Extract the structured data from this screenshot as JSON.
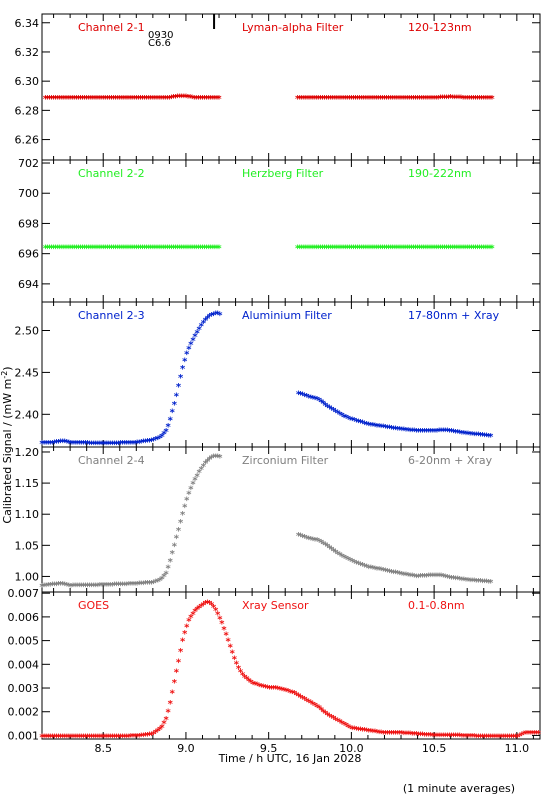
{
  "shared": {
    "x_ticks": [
      "8.5",
      "9.0",
      "9.5",
      "10.0",
      "10.5",
      "11.0"
    ],
    "xlabel": "Time / h UTC, 16 Jan 2028",
    "ylabel": "Calibrated Signal / (mW m",
    "ylabel_exp": "-2",
    "ylabel_end": ")",
    "footnote": "(1 minute averages)"
  },
  "chart_data": [
    {
      "type": "scatter",
      "channel": "Channel 2-1",
      "filter": "Lyman-alpha Filter",
      "band": "120-123nm",
      "color": "#dd0000",
      "ylim": [
        6.246,
        6.346
      ],
      "y_ticks": [
        "6.26",
        "6.28",
        "6.30",
        "6.32",
        "6.34"
      ],
      "xlim": [
        8.13,
        11.14
      ],
      "flare_label_time": "0930",
      "flare_label_class": "C6.6",
      "flare_marker_x": 9.17,
      "data_gap": [
        9.21,
        9.67
      ],
      "series_x": [
        8.15,
        8.3,
        8.5,
        8.7,
        8.9,
        8.95,
        9.0,
        9.05,
        9.2,
        9.67,
        9.9,
        10.2,
        10.5,
        10.6,
        10.7,
        10.85
      ],
      "series_y": [
        6.2885,
        6.2885,
        6.2885,
        6.2885,
        6.2885,
        6.2895,
        6.2895,
        6.2885,
        6.2885,
        6.2885,
        6.2885,
        6.2885,
        6.2885,
        6.289,
        6.2885,
        6.2885
      ]
    },
    {
      "type": "scatter",
      "channel": "Channel 2-2",
      "filter": "Herzberg Filter",
      "band": "190-222nm",
      "color": "#22ee22",
      "ylim": [
        692.8,
        702.2
      ],
      "y_ticks": [
        "694",
        "696",
        "698",
        "700",
        "702"
      ],
      "xlim": [
        8.13,
        11.14
      ],
      "data_gap": [
        9.21,
        9.67
      ],
      "series_x": [
        8.15,
        8.6,
        9.0,
        9.2,
        9.67,
        10.0,
        10.5,
        10.85
      ],
      "series_y": [
        696.4,
        696.4,
        696.4,
        696.4,
        696.4,
        696.4,
        696.4,
        696.4
      ]
    },
    {
      "type": "scatter",
      "channel": "Channel 2-3",
      "filter": "Aluminium Filter",
      "band": "17-80nm + Xray",
      "color": "#0022cc",
      "ylim": [
        2.361,
        2.534
      ],
      "y_ticks": [
        "2.40",
        "2.45",
        "2.50"
      ],
      "xlim": [
        8.13,
        11.14
      ],
      "data_gap": [
        9.21,
        9.67
      ],
      "series_x": [
        8.13,
        8.2,
        8.25,
        8.3,
        8.5,
        8.7,
        8.8,
        8.85,
        8.88,
        8.9,
        8.92,
        8.94,
        8.96,
        8.98,
        9.0,
        9.02,
        9.04,
        9.06,
        9.08,
        9.1,
        9.12,
        9.14,
        9.16,
        9.18,
        9.2,
        9.67,
        9.7,
        9.75,
        9.8,
        9.85,
        9.9,
        9.95,
        10.0,
        10.1,
        10.2,
        10.3,
        10.4,
        10.5,
        10.55,
        10.6,
        10.7,
        10.8,
        10.85
      ],
      "series_y": [
        2.366,
        2.366,
        2.368,
        2.366,
        2.365,
        2.366,
        2.369,
        2.373,
        2.38,
        2.39,
        2.405,
        2.42,
        2.438,
        2.455,
        2.47,
        2.48,
        2.488,
        2.495,
        2.502,
        2.508,
        2.513,
        2.517,
        2.519,
        2.52,
        2.52,
        2.425,
        2.424,
        2.42,
        2.418,
        2.41,
        2.404,
        2.398,
        2.394,
        2.388,
        2.385,
        2.382,
        2.38,
        2.38,
        2.381,
        2.38,
        2.377,
        2.375,
        2.374
      ]
    },
    {
      "type": "scatter",
      "channel": "Channel 2-4",
      "filter": "Zirconium Filter",
      "band": "6-20nm + Xray",
      "color": "#808080",
      "ylim": [
        0.975,
        1.208
      ],
      "y_ticks": [
        "1.00",
        "1.05",
        "1.10",
        "1.15",
        "1.20"
      ],
      "xlim": [
        8.13,
        11.14
      ],
      "data_gap": [
        9.21,
        9.67
      ],
      "series_x": [
        8.13,
        8.2,
        8.25,
        8.3,
        8.5,
        8.7,
        8.8,
        8.85,
        8.88,
        8.9,
        8.92,
        8.94,
        8.96,
        8.98,
        9.0,
        9.02,
        9.04,
        9.06,
        9.08,
        9.1,
        9.12,
        9.14,
        9.16,
        9.18,
        9.2,
        9.67,
        9.7,
        9.75,
        9.8,
        9.85,
        9.9,
        9.95,
        10.0,
        10.1,
        10.2,
        10.3,
        10.4,
        10.5,
        10.55,
        10.6,
        10.7,
        10.8,
        10.85
      ],
      "series_y": [
        0.985,
        0.987,
        0.988,
        0.985,
        0.986,
        0.988,
        0.99,
        0.995,
        1.005,
        1.02,
        1.04,
        1.06,
        1.08,
        1.1,
        1.12,
        1.135,
        1.148,
        1.158,
        1.168,
        1.176,
        1.183,
        1.188,
        1.192,
        1.193,
        1.193,
        1.067,
        1.065,
        1.06,
        1.058,
        1.05,
        1.04,
        1.032,
        1.025,
        1.015,
        1.01,
        1.004,
        1.0,
        1.002,
        1.001,
        0.998,
        0.994,
        0.992,
        0.991
      ]
    },
    {
      "type": "scatter",
      "channel": "GOES",
      "filter": "Xray Sensor",
      "band": "0.1-0.8nm",
      "color": "#ee1111",
      "ylim": [
        0.00085,
        0.00705
      ],
      "y_ticks": [
        "0.001",
        "0.002",
        "0.003",
        "0.004",
        "0.005",
        "0.006",
        "0.007"
      ],
      "xlim": [
        8.13,
        11.14
      ],
      "series_x": [
        8.13,
        8.3,
        8.5,
        8.7,
        8.8,
        8.85,
        8.88,
        8.9,
        8.92,
        8.94,
        8.96,
        8.98,
        9.0,
        9.02,
        9.04,
        9.06,
        9.08,
        9.1,
        9.12,
        9.14,
        9.16,
        9.18,
        9.2,
        9.22,
        9.24,
        9.26,
        9.28,
        9.3,
        9.32,
        9.35,
        9.4,
        9.45,
        9.5,
        9.55,
        9.6,
        9.65,
        9.7,
        9.75,
        9.8,
        9.85,
        9.9,
        9.95,
        10.0,
        10.1,
        10.2,
        10.3,
        10.4,
        10.5,
        10.6,
        10.7,
        10.8,
        10.9,
        11.0,
        11.05,
        11.1,
        11.14
      ],
      "series_y": [
        0.00095,
        0.00095,
        0.00095,
        0.00097,
        0.00105,
        0.0013,
        0.0017,
        0.0022,
        0.0029,
        0.0036,
        0.0043,
        0.005,
        0.0055,
        0.0059,
        0.0061,
        0.0063,
        0.0064,
        0.0065,
        0.0066,
        0.0066,
        0.0065,
        0.0063,
        0.006,
        0.0057,
        0.0053,
        0.0049,
        0.0045,
        0.0041,
        0.0038,
        0.0035,
        0.0032,
        0.0031,
        0.003,
        0.003,
        0.0029,
        0.0028,
        0.0026,
        0.0024,
        0.0022,
        0.0019,
        0.0017,
        0.0015,
        0.0013,
        0.0012,
        0.0011,
        0.0011,
        0.00105,
        0.001,
        0.001,
        0.00098,
        0.00095,
        0.00095,
        0.00095,
        0.0011,
        0.0011,
        0.0011
      ]
    }
  ]
}
